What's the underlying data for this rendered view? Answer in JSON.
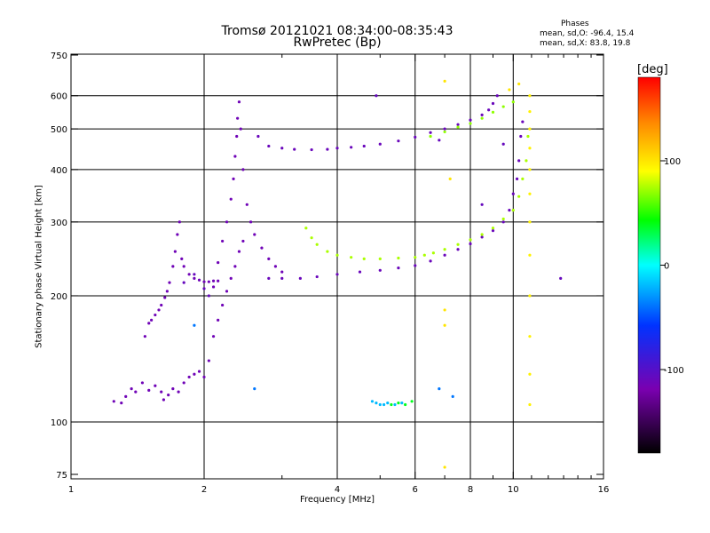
{
  "chart_data": {
    "type": "scatter",
    "title": "Tromsø 20121021 08:34:00-08:35:43",
    "subtitle": "RwPretec (Bp)",
    "stats": {
      "heading": "Phases",
      "o_mode": "mean, sd,O: -96.4, 15.4",
      "x_mode": "mean, sd,X:  83.8, 19.8"
    },
    "xlabel": "Frequency [MHz]",
    "ylabel": "Stationary phase Virtual Height [km]",
    "x_scale": "log",
    "y_scale": "log",
    "xlim": [
      1,
      16
    ],
    "ylim": [
      73,
      750
    ],
    "x_ticks": [
      1,
      2,
      4,
      6,
      8,
      10,
      16
    ],
    "x_minor_ticks": [
      3,
      5,
      7,
      9,
      11,
      12,
      13,
      14,
      15
    ],
    "y_ticks": [
      75,
      100,
      200,
      300,
      400,
      500,
      600,
      750
    ],
    "grid_x": [
      2,
      4,
      6,
      8,
      10
    ],
    "grid_y": [
      100,
      200,
      300,
      400,
      500,
      600
    ],
    "colorbar": {
      "unit": "[deg]",
      "range": [
        -180,
        180
      ],
      "ticks": [
        -100,
        0,
        100
      ]
    },
    "series": [
      {
        "phase": -115,
        "points": [
          [
            1.25,
            112
          ],
          [
            1.3,
            111
          ],
          [
            1.33,
            115
          ],
          [
            1.37,
            120
          ],
          [
            1.4,
            118
          ],
          [
            1.45,
            124
          ],
          [
            1.5,
            119
          ],
          [
            1.55,
            122
          ],
          [
            1.6,
            118
          ],
          [
            1.62,
            113
          ],
          [
            1.66,
            116
          ],
          [
            1.7,
            120
          ],
          [
            1.75,
            118
          ],
          [
            1.8,
            124
          ],
          [
            1.85,
            128
          ],
          [
            1.9,
            130
          ],
          [
            1.95,
            132
          ],
          [
            2.0,
            128
          ],
          [
            2.05,
            140
          ],
          [
            2.1,
            160
          ],
          [
            2.15,
            175
          ],
          [
            2.2,
            190
          ],
          [
            2.25,
            205
          ],
          [
            2.3,
            220
          ],
          [
            2.35,
            235
          ],
          [
            2.4,
            255
          ],
          [
            2.45,
            270
          ]
        ]
      },
      {
        "phase": -115,
        "points": [
          [
            1.47,
            160
          ],
          [
            1.5,
            172
          ],
          [
            1.52,
            175
          ],
          [
            1.55,
            180
          ],
          [
            1.58,
            185
          ],
          [
            1.6,
            190
          ],
          [
            1.63,
            198
          ],
          [
            1.65,
            205
          ],
          [
            1.67,
            215
          ],
          [
            1.7,
            235
          ],
          [
            1.72,
            255
          ],
          [
            1.74,
            280
          ],
          [
            1.76,
            300
          ],
          [
            1.78,
            245
          ],
          [
            1.8,
            235
          ],
          [
            1.85,
            225
          ],
          [
            1.9,
            220
          ],
          [
            1.95,
            218
          ],
          [
            2.0,
            216
          ],
          [
            2.05,
            216
          ],
          [
            2.1,
            217
          ],
          [
            2.15,
            217
          ]
        ]
      },
      {
        "phase": -115,
        "points": [
          [
            2.1,
            210
          ],
          [
            2.15,
            240
          ],
          [
            2.2,
            270
          ],
          [
            2.25,
            300
          ],
          [
            2.3,
            340
          ],
          [
            2.33,
            380
          ],
          [
            2.35,
            430
          ],
          [
            2.37,
            480
          ],
          [
            2.38,
            530
          ],
          [
            2.4,
            580
          ],
          [
            2.42,
            500
          ],
          [
            2.45,
            400
          ],
          [
            2.5,
            330
          ],
          [
            2.55,
            300
          ],
          [
            2.6,
            280
          ],
          [
            2.7,
            260
          ],
          [
            2.8,
            245
          ],
          [
            2.9,
            235
          ],
          [
            3.0,
            228
          ]
        ]
      },
      {
        "phase": -112,
        "points": [
          [
            2.8,
            220
          ],
          [
            3.0,
            220
          ],
          [
            3.3,
            220
          ],
          [
            3.6,
            222
          ],
          [
            4.0,
            225
          ],
          [
            4.5,
            228
          ],
          [
            5.0,
            230
          ],
          [
            5.5,
            233
          ],
          [
            6.0,
            236
          ],
          [
            6.5,
            242
          ],
          [
            7.0,
            250
          ],
          [
            7.5,
            258
          ],
          [
            8.0,
            266
          ],
          [
            8.5,
            276
          ],
          [
            9.0,
            286
          ],
          [
            9.5,
            300
          ],
          [
            9.8,
            320
          ],
          [
            10.0,
            350
          ],
          [
            10.2,
            380
          ],
          [
            10.3,
            420
          ],
          [
            10.4,
            480
          ],
          [
            10.5,
            520
          ]
        ]
      },
      {
        "phase": -112,
        "points": [
          [
            2.65,
            480
          ],
          [
            2.8,
            455
          ],
          [
            3.0,
            450
          ],
          [
            3.2,
            447
          ],
          [
            3.5,
            446
          ],
          [
            3.8,
            447
          ],
          [
            4.0,
            450
          ],
          [
            4.3,
            452
          ],
          [
            4.6,
            455
          ],
          [
            5.0,
            460
          ],
          [
            5.5,
            468
          ],
          [
            6.0,
            478
          ],
          [
            6.5,
            490
          ],
          [
            7.0,
            500
          ],
          [
            7.5,
            512
          ],
          [
            8.0,
            525
          ],
          [
            8.5,
            540
          ],
          [
            8.8,
            555
          ],
          [
            9.0,
            575
          ],
          [
            9.2,
            600
          ]
        ]
      },
      {
        "phase": 75,
        "points": [
          [
            3.4,
            290
          ],
          [
            3.5,
            275
          ],
          [
            3.6,
            265
          ],
          [
            3.8,
            255
          ],
          [
            4.0,
            250
          ],
          [
            4.3,
            247
          ],
          [
            4.6,
            245
          ],
          [
            5.0,
            245
          ],
          [
            5.5,
            246
          ],
          [
            6.0,
            247
          ],
          [
            6.3,
            250
          ],
          [
            6.6,
            253
          ],
          [
            7.0,
            258
          ],
          [
            7.5,
            265
          ],
          [
            8.0,
            272
          ],
          [
            8.5,
            280
          ],
          [
            9.0,
            290
          ],
          [
            9.5,
            305
          ],
          [
            10.0,
            320
          ],
          [
            10.3,
            345
          ],
          [
            10.5,
            380
          ],
          [
            10.7,
            420
          ],
          [
            10.8,
            480
          ]
        ]
      },
      {
        "phase": 70,
        "points": [
          [
            6.5,
            480
          ],
          [
            7.0,
            492
          ],
          [
            7.5,
            505
          ],
          [
            8.0,
            515
          ],
          [
            8.5,
            530
          ],
          [
            9.0,
            548
          ],
          [
            9.5,
            565
          ],
          [
            10.0,
            580
          ]
        ]
      },
      {
        "phase": 95,
        "points": [
          [
            10.9,
            110
          ],
          [
            10.9,
            130
          ],
          [
            10.9,
            160
          ],
          [
            10.9,
            200
          ],
          [
            10.9,
            250
          ],
          [
            10.9,
            300
          ],
          [
            10.9,
            350
          ],
          [
            10.9,
            400
          ],
          [
            10.9,
            450
          ],
          [
            10.9,
            500
          ],
          [
            10.9,
            550
          ],
          [
            10.9,
            600
          ]
        ]
      },
      {
        "phase": -20,
        "points": [
          [
            4.8,
            112
          ],
          [
            4.9,
            111
          ],
          [
            5.0,
            110
          ],
          [
            5.1,
            110
          ],
          [
            5.2,
            111
          ],
          [
            5.4,
            110
          ],
          [
            5.6,
            111
          ]
        ]
      },
      {
        "phase": 40,
        "points": [
          [
            5.3,
            110
          ],
          [
            5.5,
            111
          ],
          [
            5.7,
            110
          ],
          [
            5.9,
            112
          ]
        ]
      },
      {
        "phase": -110,
        "points": [
          [
            1.8,
            215
          ],
          [
            1.9,
            225
          ],
          [
            2.0,
            208
          ],
          [
            2.05,
            200
          ],
          [
            12.8,
            220
          ],
          [
            9.5,
            460
          ],
          [
            8.5,
            330
          ],
          [
            6.8,
            470
          ],
          [
            4.9,
            600
          ]
        ]
      },
      {
        "phase": 100,
        "points": [
          [
            7.0,
            650
          ],
          [
            7.0,
            185
          ],
          [
            7.0,
            78
          ],
          [
            7.0,
            170
          ],
          [
            9.8,
            620
          ],
          [
            7.2,
            380
          ],
          [
            10.3,
            640
          ]
        ]
      },
      {
        "phase": -40,
        "points": [
          [
            2.6,
            120
          ],
          [
            6.8,
            120
          ],
          [
            7.3,
            115
          ],
          [
            1.9,
            170
          ]
        ]
      }
    ]
  }
}
